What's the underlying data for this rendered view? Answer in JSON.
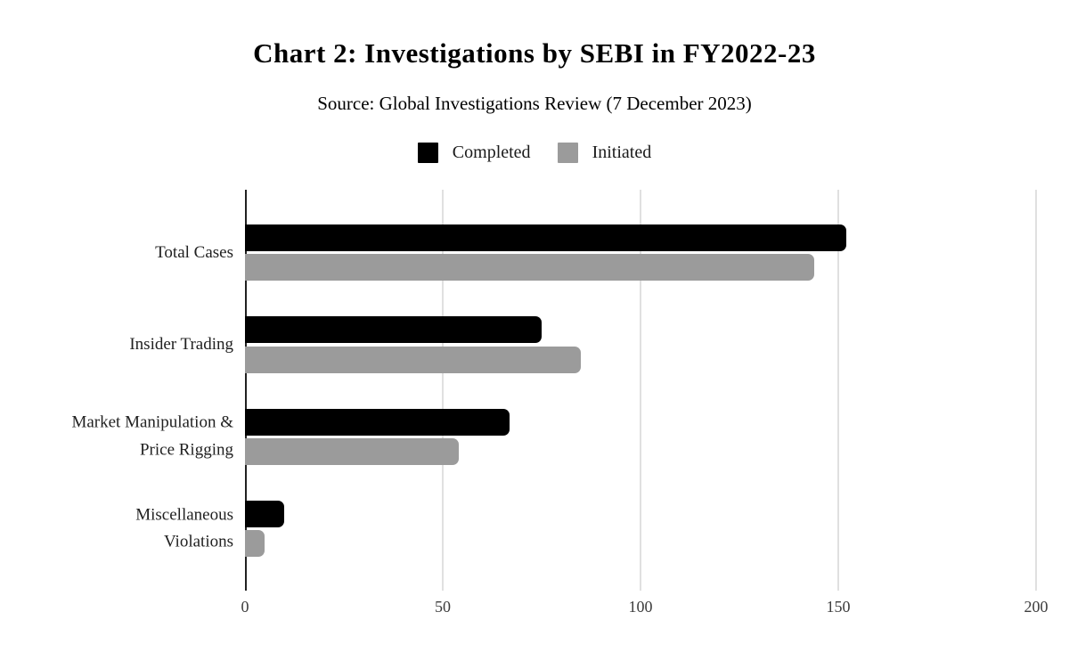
{
  "title": "Chart 2: Investigations by SEBI in FY2022-23",
  "subtitle": "Source: Global Investigations Review (7 December 2023)",
  "chart_data": {
    "type": "bar",
    "orientation": "horizontal",
    "title": "Chart 2: Investigations by SEBI in FY2022-23",
    "subtitle": "Source: Global Investigations Review (7 December 2023)",
    "categories": [
      "Total Cases",
      "Insider Trading",
      "Market Manipulation & Price Rigging",
      "Miscellaneous Violations"
    ],
    "series": [
      {
        "name": "Completed",
        "color": "#000000",
        "values": [
          152,
          75,
          67,
          10
        ]
      },
      {
        "name": "Initiated",
        "color": "#9b9b9b",
        "values": [
          144,
          85,
          54,
          5
        ]
      }
    ],
    "xlabel": "",
    "ylabel": "",
    "xlim": [
      0,
      200
    ],
    "xticks": [
      0,
      50,
      100,
      150,
      200
    ],
    "grid": "vertical-gridlines-on",
    "legend_position": "top-center"
  },
  "category_label_lines": [
    [
      "Total Cases"
    ],
    [
      "Insider Trading"
    ],
    [
      "Market Manipulation &",
      "Price Rigging"
    ],
    [
      "Miscellaneous",
      "Violations"
    ]
  ],
  "colors": {
    "background": "#ffffff",
    "axis_line": "#212121",
    "gridline": "#e0e0e0",
    "tick_label": "#3d3d3d",
    "category_label": "#212121"
  }
}
